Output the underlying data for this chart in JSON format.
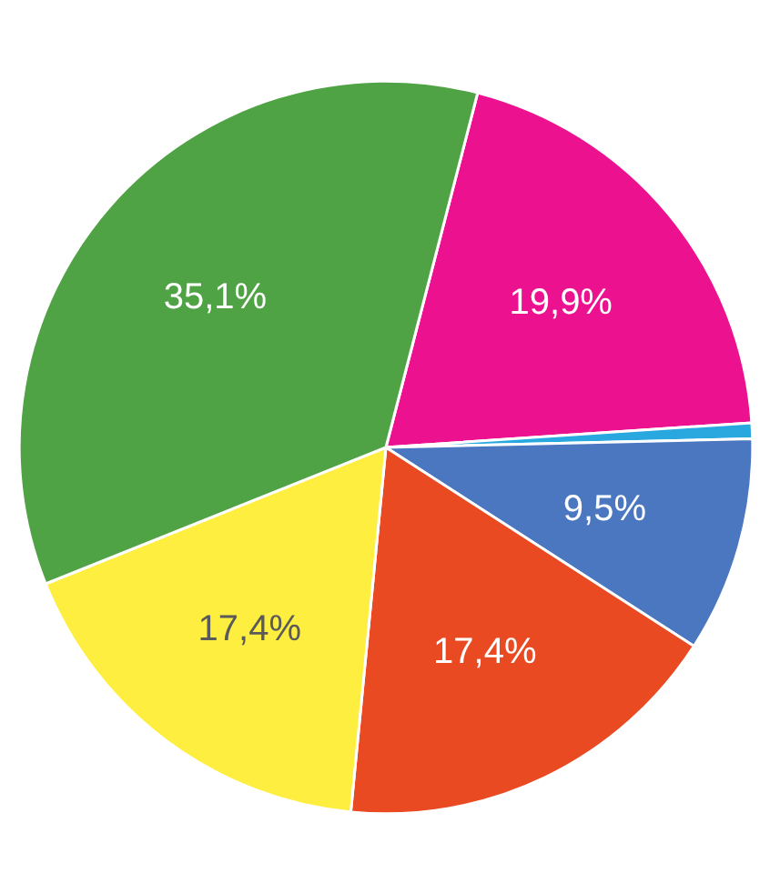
{
  "chart_data": {
    "type": "pie",
    "categories": [
      null,
      null,
      null,
      null,
      null,
      null
    ],
    "values": [
      19.9,
      0.7,
      9.5,
      17.4,
      17.4,
      35.1
    ],
    "colors": [
      "#ec128f",
      "#29a8e0",
      "#4a77c0",
      "#e94a22",
      "#fdee3f",
      "#50a345"
    ],
    "value_labels": [
      "19,9%",
      null,
      "9,5%",
      "17,4%",
      "17,4%",
      "35,1%"
    ]
  }
}
